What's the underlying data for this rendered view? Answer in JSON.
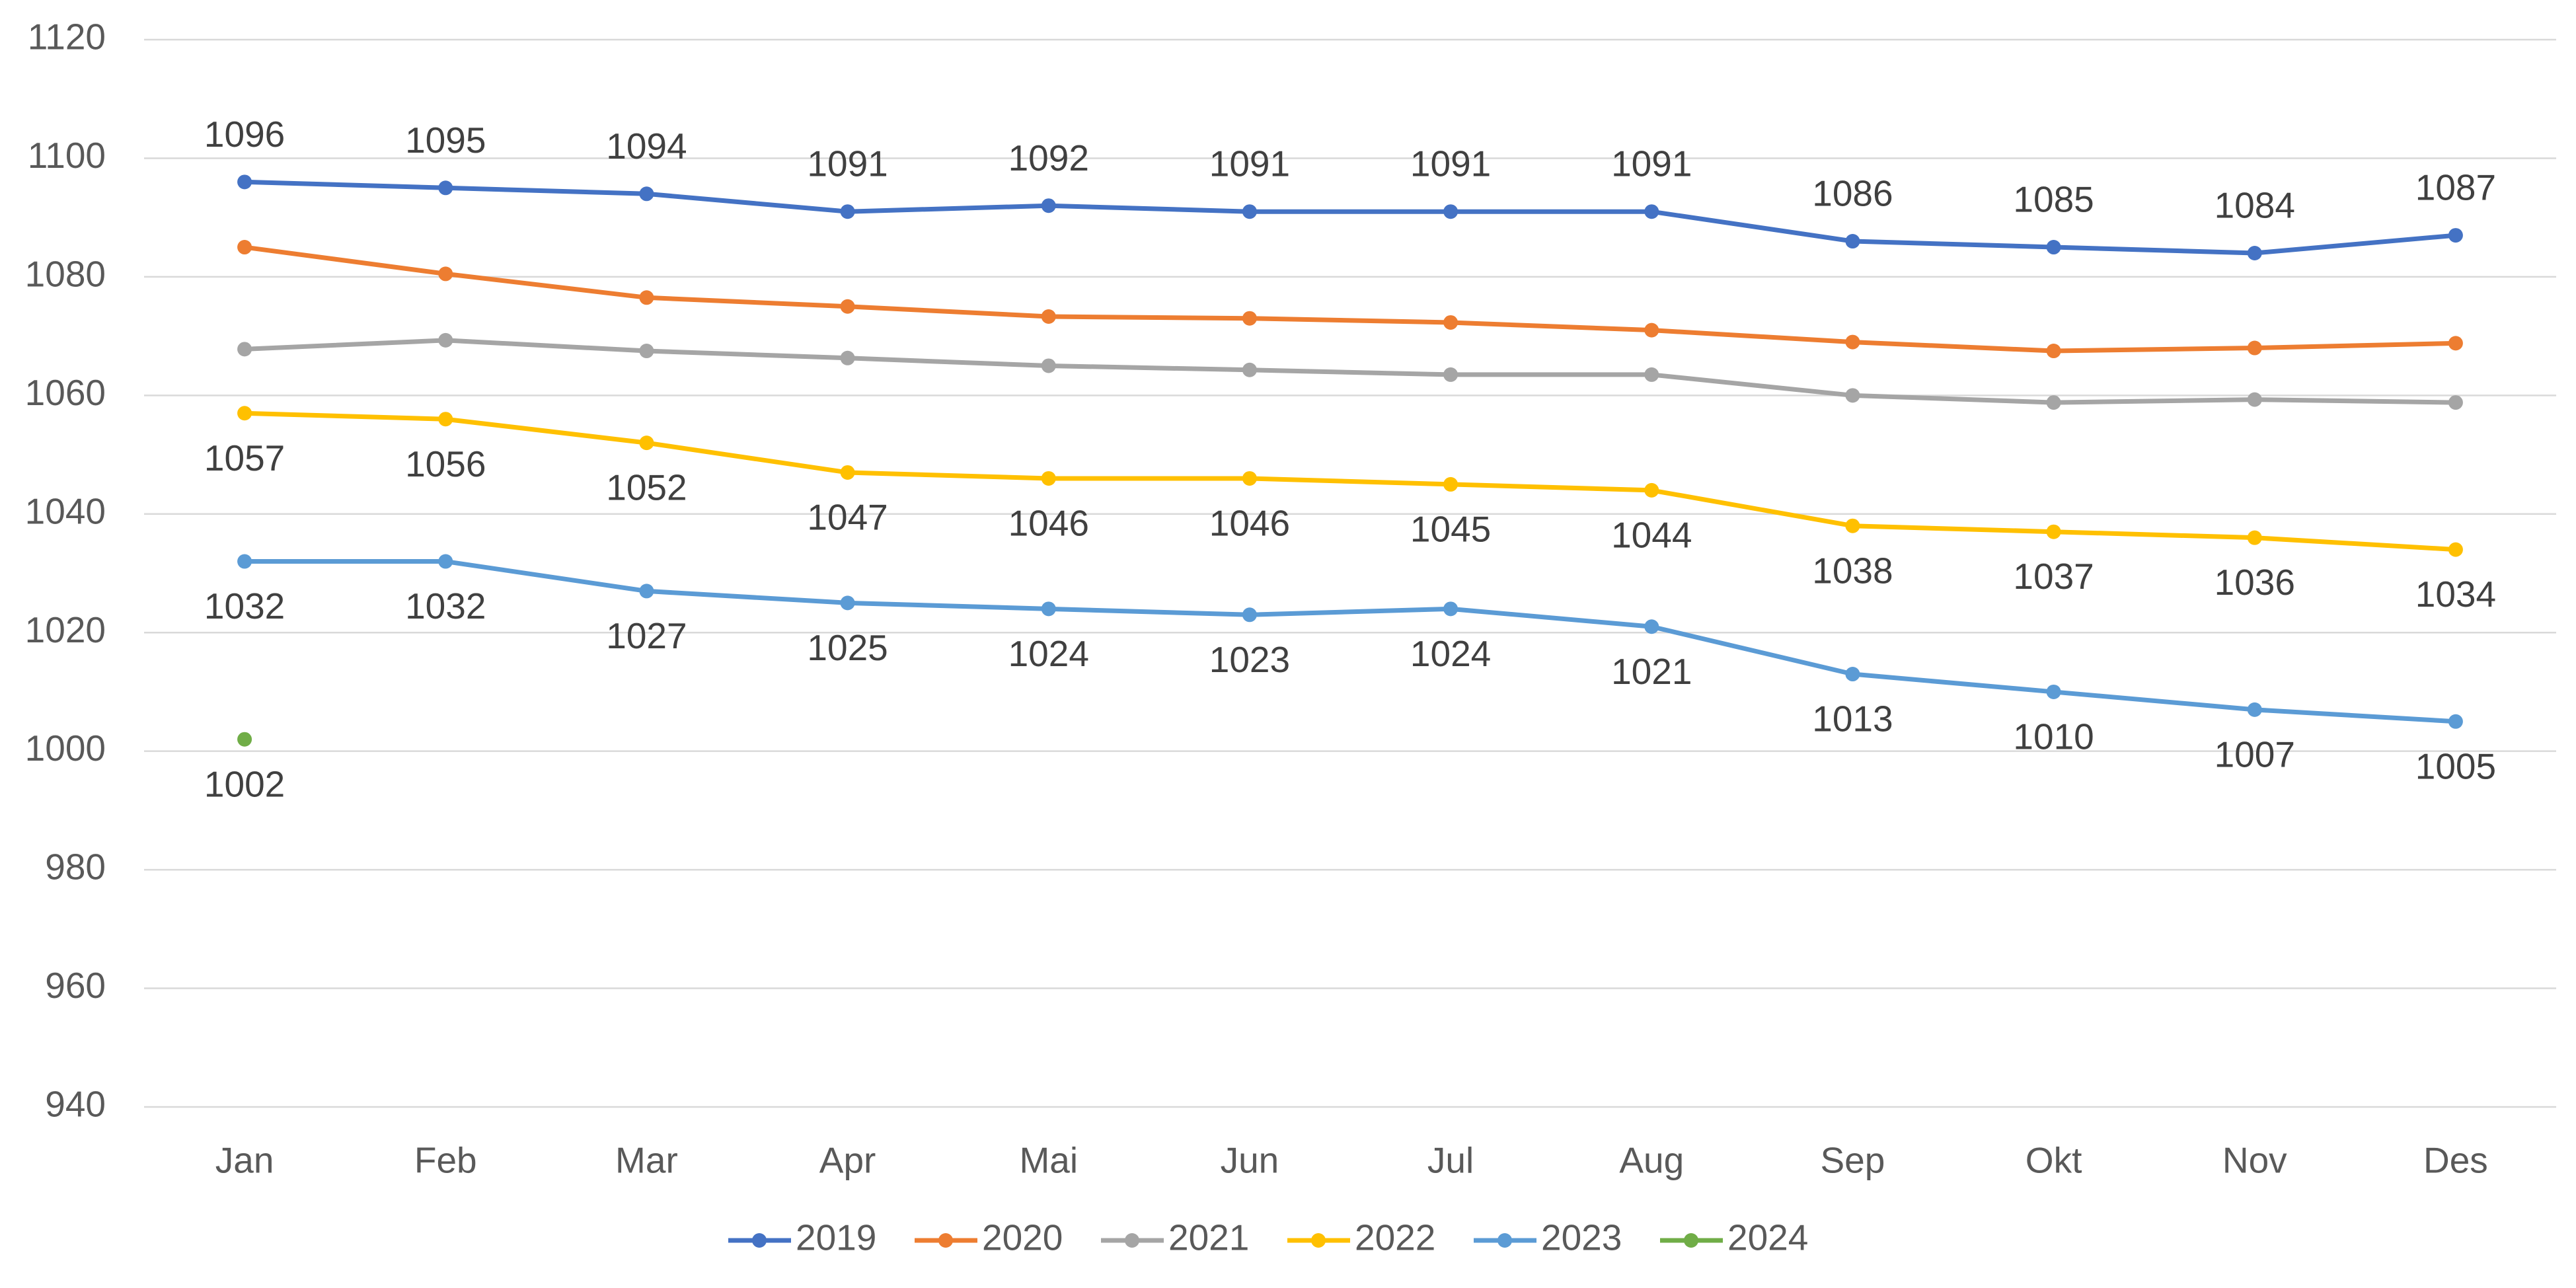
{
  "chart_data": {
    "type": "line",
    "categories": [
      "Jan",
      "Feb",
      "Mar",
      "Apr",
      "Mai",
      "Jun",
      "Jul",
      "Aug",
      "Sep",
      "Okt",
      "Nov",
      "Des"
    ],
    "series": [
      {
        "name": "2019",
        "color": "#4472c4",
        "data_labels": "above",
        "values": [
          1096,
          1095,
          1094,
          1091,
          1092,
          1091,
          1091,
          1091,
          1086,
          1085,
          1084,
          1087
        ]
      },
      {
        "name": "2020",
        "color": "#ed7d31",
        "values": [
          1085,
          1080.5,
          1076.5,
          1075,
          1073.3,
          1073,
          1072.3,
          1071,
          1069,
          1067.5,
          1068,
          1068.8
        ]
      },
      {
        "name": "2021",
        "color": "#a5a5a5",
        "values": [
          1067.8,
          1069.3,
          1067.5,
          1066.3,
          1065,
          1064.3,
          1063.5,
          1063.5,
          1060,
          1058.8,
          1059.3,
          1058.8
        ]
      },
      {
        "name": "2022",
        "color": "#ffc000",
        "data_labels": "below",
        "values": [
          1057,
          1056,
          1052,
          1047,
          1046,
          1046,
          1045,
          1044,
          1038,
          1037,
          1036,
          1034
        ]
      },
      {
        "name": "2023",
        "color": "#5b9bd5",
        "data_labels": "below",
        "values": [
          1032,
          1032,
          1027,
          1025,
          1024,
          1023,
          1024,
          1021,
          1013,
          1010,
          1007,
          1005
        ]
      },
      {
        "name": "2024",
        "color": "#70ad47",
        "data_labels": "below",
        "values": [
          1002,
          null,
          null,
          null,
          null,
          null,
          null,
          null,
          null,
          null,
          null,
          null
        ]
      }
    ],
    "ylim": [
      940,
      1120
    ],
    "yticks": [
      940,
      960,
      980,
      1000,
      1020,
      1040,
      1060,
      1080,
      1100,
      1120
    ],
    "grid": true,
    "legend": "bottom"
  }
}
